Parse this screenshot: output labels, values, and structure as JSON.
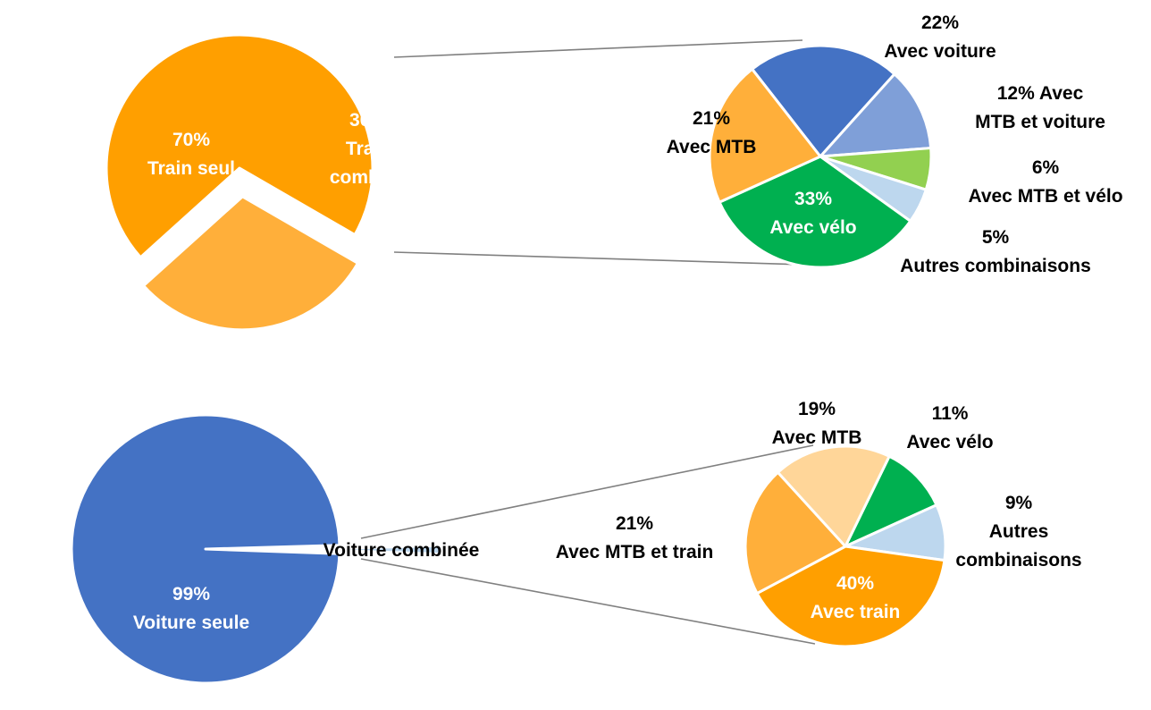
{
  "chart_data": [
    {
      "type": "pie",
      "title": "",
      "slices": [
        {
          "label_lines": [
            "70%",
            "Train seul"
          ],
          "value": 70,
          "color": "#FF9F00",
          "text_color": "#ffffff"
        },
        {
          "label_lines": [
            "30%",
            "Train",
            "combiné"
          ],
          "value": 30,
          "color": "#FFAF3A",
          "text_color": "#ffffff",
          "exploded": true
        }
      ]
    },
    {
      "type": "pie",
      "title": "",
      "slices": [
        {
          "label_lines": [
            "22%",
            "Avec voiture"
          ],
          "value": 22,
          "color": "#4472C4",
          "text_color": "#000000"
        },
        {
          "label_lines": [
            "12% Avec",
            "MTB et voiture"
          ],
          "value": 12,
          "color": "#7F9FD8",
          "text_color": "#000000"
        },
        {
          "label_lines": [
            "6%",
            "Avec MTB et vélo"
          ],
          "value": 6,
          "color": "#92D050",
          "text_color": "#000000"
        },
        {
          "label_lines": [
            "5%",
            "Autres combinaisons"
          ],
          "value": 5,
          "color": "#BDD7EE",
          "text_color": "#000000"
        },
        {
          "label_lines": [
            "33%",
            "Avec vélo"
          ],
          "value": 33,
          "color": "#00B050",
          "text_color": "#ffffff"
        },
        {
          "label_lines": [
            "21%",
            "Avec MTB"
          ],
          "value": 21,
          "color": "#FFAF3A",
          "text_color": "#000000"
        }
      ]
    },
    {
      "type": "pie",
      "title": "",
      "slices": [
        {
          "label_lines": [
            "99%",
            "Voiture seule"
          ],
          "value": 99,
          "color": "#4472C4",
          "text_color": "#ffffff"
        },
        {
          "label_lines": [
            "Voiture combinée"
          ],
          "value": 1,
          "color": "#BDD7EE",
          "text_color": "#000000",
          "exploded": true
        }
      ]
    },
    {
      "type": "pie",
      "title": "",
      "slices": [
        {
          "label_lines": [
            "11%",
            "Avec vélo"
          ],
          "value": 11,
          "color": "#00B050",
          "text_color": "#000000"
        },
        {
          "label_lines": [
            "9%",
            "Autres",
            "combinaisons"
          ],
          "value": 9,
          "color": "#BDD7EE",
          "text_color": "#000000"
        },
        {
          "label_lines": [
            "40%",
            "Avec train"
          ],
          "value": 40,
          "color": "#FF9F00",
          "text_color": "#ffffff"
        },
        {
          "label_lines": [
            "21%",
            "Avec MTB et train"
          ],
          "value": 21,
          "color": "#FFAF3A",
          "text_color": "#000000"
        },
        {
          "label_lines": [
            "19%",
            "Avec MTB"
          ],
          "value": 19,
          "color": "#FFD699",
          "text_color": "#000000"
        }
      ]
    }
  ]
}
